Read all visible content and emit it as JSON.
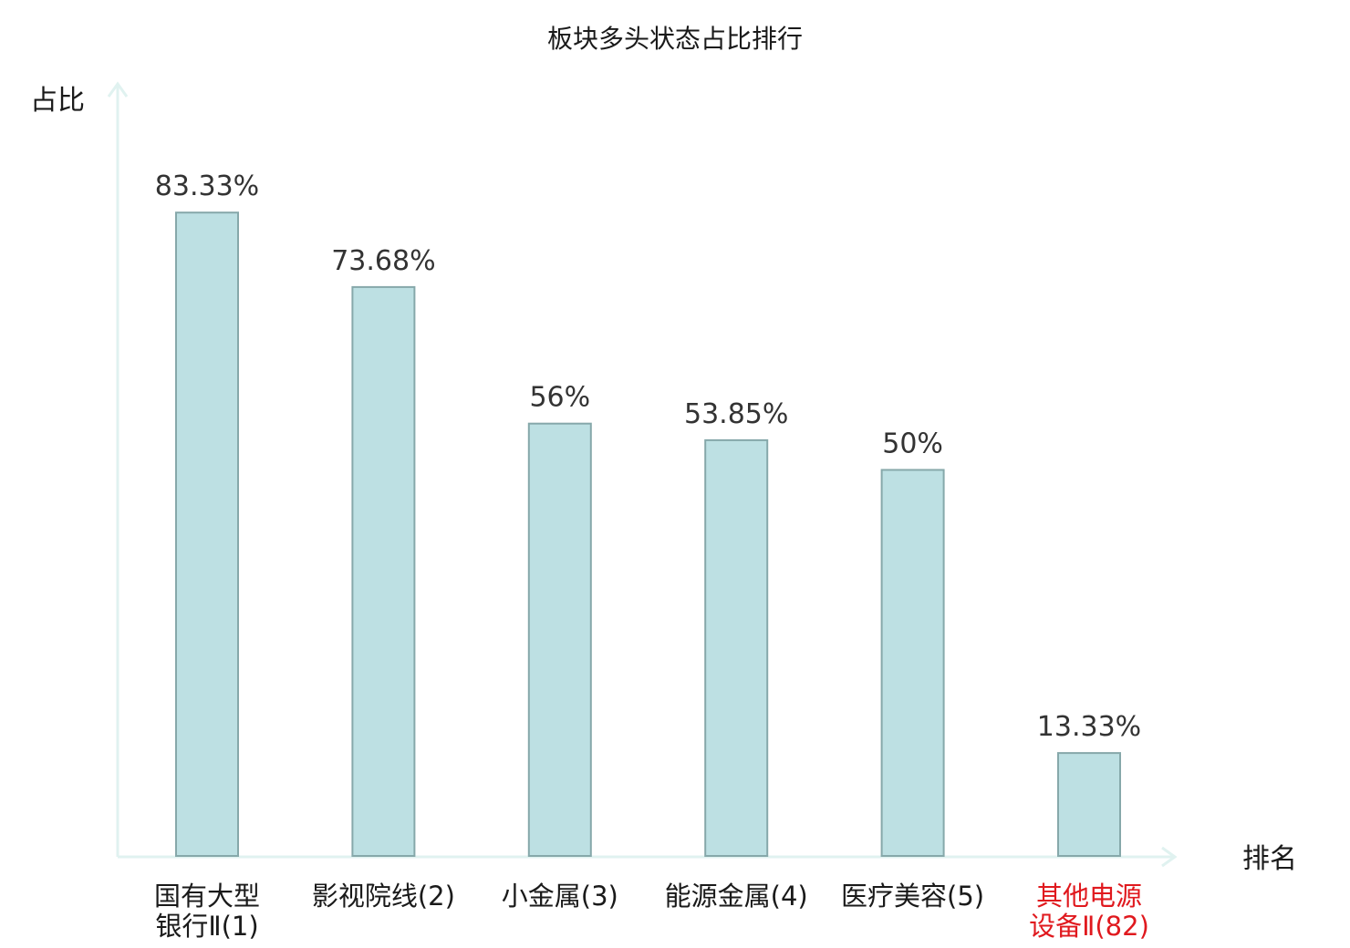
{
  "chart_data": {
    "type": "bar",
    "title": "板块多头状态占比排行",
    "ylabel": "占比",
    "xlabel": "排名",
    "categories": [
      {
        "lines": [
          "国有大型",
          "银行Ⅱ(1)"
        ],
        "highlight": false
      },
      {
        "lines": [
          "影视院线(2)"
        ],
        "highlight": false
      },
      {
        "lines": [
          "小金属(3)"
        ],
        "highlight": false
      },
      {
        "lines": [
          "能源金属(4)"
        ],
        "highlight": false
      },
      {
        "lines": [
          "医疗美容(5)"
        ],
        "highlight": false
      },
      {
        "lines": [
          "其他电源",
          "设备Ⅱ(82)"
        ],
        "highlight": true
      }
    ],
    "values": [
      83.33,
      73.68,
      56,
      53.85,
      50,
      13.33
    ],
    "value_labels": [
      "83.33%",
      "73.68%",
      "56%",
      "53.85%",
      "50%",
      "13.33%"
    ],
    "ylim": [
      0,
      100
    ],
    "grid": false,
    "colors": {
      "bar_fill": "#bde0e3",
      "bar_stroke": "#86a8aa",
      "axis": "#e0f2f0",
      "label_normal": "#1a1a1a",
      "label_highlight": "#e0191e",
      "value_text": "#333333"
    }
  }
}
